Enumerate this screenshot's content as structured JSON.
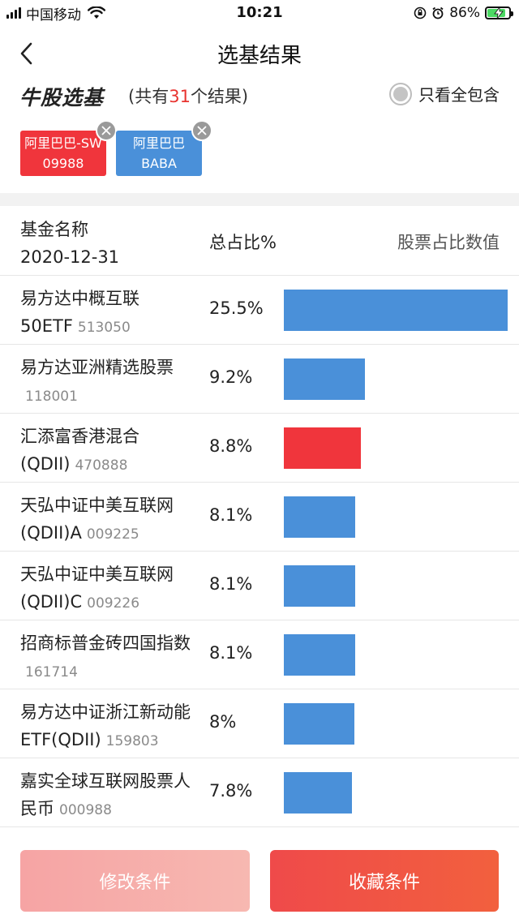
{
  "status_bar": {
    "carrier": "中国移动",
    "time": "10:21",
    "battery": "86%",
    "battery_level": 0.86
  },
  "nav": {
    "title": "选基结果",
    "back_icon": "chevron-left-icon"
  },
  "header": {
    "logo": "牛股选基",
    "result_prefix": "(共有",
    "result_count": "31",
    "result_suffix": "个结果)",
    "only_all_label": "只看全包含"
  },
  "chips": [
    {
      "line1": "阿里巴巴-SW",
      "line2": "09988",
      "color": "#f0353c"
    },
    {
      "line1": "阿里巴巴",
      "line2": "BABA",
      "color": "#4a90d9"
    }
  ],
  "table": {
    "col_name": "基金名称",
    "col_date": "2020-12-31",
    "col_ratio": "总占比%",
    "col_value": "股票占比数值"
  },
  "funds": [
    {
      "name": "易方达中概互联50ETF",
      "code": "513050",
      "ratio": "25.5%",
      "value": 25.5,
      "color": "#4a90d9"
    },
    {
      "name": "易方达亚洲精选股票",
      "code": "118001",
      "ratio": "9.2%",
      "value": 9.2,
      "color": "#4a90d9"
    },
    {
      "name": "汇添富香港混合(QDII)",
      "code": "470888",
      "ratio": "8.8%",
      "value": 8.8,
      "color": "#f0353c"
    },
    {
      "name": "天弘中证中美互联网(QDII)A",
      "code": "009225",
      "ratio": "8.1%",
      "value": 8.1,
      "color": "#4a90d9"
    },
    {
      "name": "天弘中证中美互联网(QDII)C",
      "code": "009226",
      "ratio": "8.1%",
      "value": 8.1,
      "color": "#4a90d9"
    },
    {
      "name": "招商标普金砖四国指数",
      "code": "161714",
      "ratio": "8.1%",
      "value": 8.1,
      "color": "#4a90d9"
    },
    {
      "name": "易方达中证浙江新动能ETF(QDII)",
      "code": "159803",
      "ratio": "8%",
      "value": 8,
      "color": "#4a90d9"
    },
    {
      "name": "嘉实全球互联网股票人民币",
      "code": "000988",
      "ratio": "7.8%",
      "value": 7.8,
      "color": "#4a90d9"
    }
  ],
  "buttons": {
    "edit": "修改条件",
    "save": "收藏条件"
  }
}
